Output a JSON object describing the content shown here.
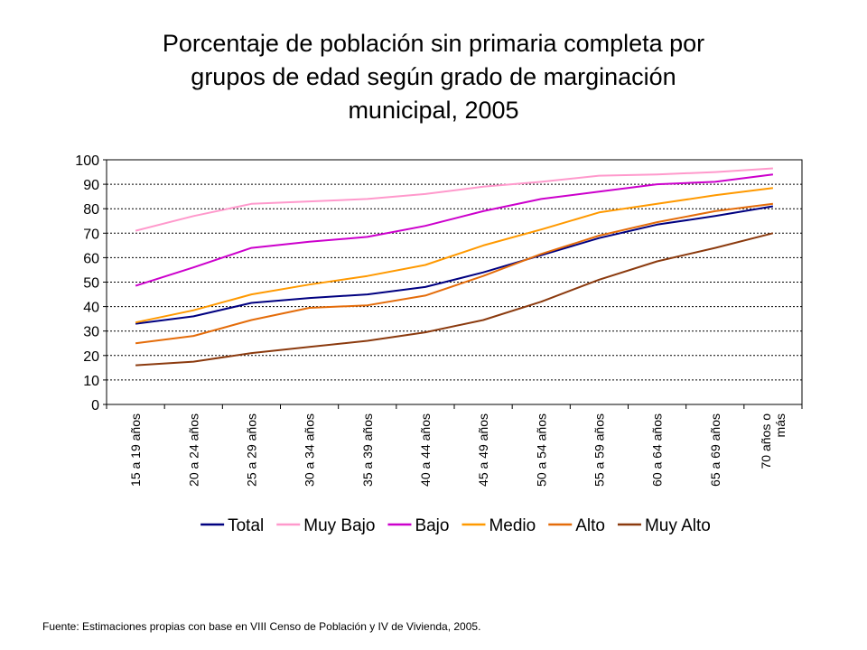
{
  "title_lines": [
    "Porcentaje de población sin primaria completa por",
    "grupos de edad según grado de marginación",
    "municipal, 2005"
  ],
  "source_note": "Fuente: Estimaciones propias con base en VIII Censo de Población y IV de Vivienda, 2005.",
  "chart_data": {
    "type": "line",
    "title": "Porcentaje de población sin primaria completa por grupos de edad según grado de marginación municipal, 2005",
    "categories": [
      [
        "15 a 19 años"
      ],
      [
        "20 a 24 años"
      ],
      [
        "25 a 29 años"
      ],
      [
        "30 a 34 años"
      ],
      [
        "35 a 39 años"
      ],
      [
        "40 a 44 años"
      ],
      [
        "45 a 49 años"
      ],
      [
        "50 a 54 años"
      ],
      [
        "55 a 59 años"
      ],
      [
        "60 a 64 años"
      ],
      [
        "65 a 69 años"
      ],
      [
        "70 años o",
        "más"
      ]
    ],
    "ylim": [
      0,
      100
    ],
    "yticks": [
      0,
      10,
      20,
      30,
      40,
      50,
      60,
      70,
      80,
      90,
      100
    ],
    "grid": "horizontal dotted",
    "legend_position": "bottom",
    "series": [
      {
        "name": "Total",
        "color": "#000080",
        "values": [
          33,
          36,
          41.5,
          43.5,
          45,
          48,
          54,
          61,
          68,
          73.5,
          77,
          81
        ]
      },
      {
        "name": "Muy Bajo",
        "color": "#FF99CC",
        "values": [
          71,
          77,
          82,
          83,
          84,
          86,
          89,
          91,
          93.5,
          94,
          95,
          96.5
        ]
      },
      {
        "name": "Bajo",
        "color": "#CC00CC",
        "values": [
          48.5,
          56,
          64,
          66.5,
          68.5,
          73,
          79,
          84,
          87,
          90,
          91,
          94
        ]
      },
      {
        "name": "Medio",
        "color": "#FF9900",
        "values": [
          33.5,
          38.5,
          45,
          49,
          52.5,
          57,
          65,
          71.5,
          78.5,
          82,
          85.5,
          88.5
        ]
      },
      {
        "name": "Alto",
        "color": "#E46C0A",
        "values": [
          25,
          28,
          34.5,
          39.5,
          40.5,
          44.5,
          52.5,
          61.5,
          69,
          74.5,
          79,
          82
        ]
      },
      {
        "name": "Muy Alto",
        "color": "#8B3A0E",
        "values": [
          16,
          17.5,
          21,
          23.5,
          26,
          29.5,
          34.5,
          42,
          51,
          58.5,
          64,
          70
        ]
      }
    ]
  }
}
